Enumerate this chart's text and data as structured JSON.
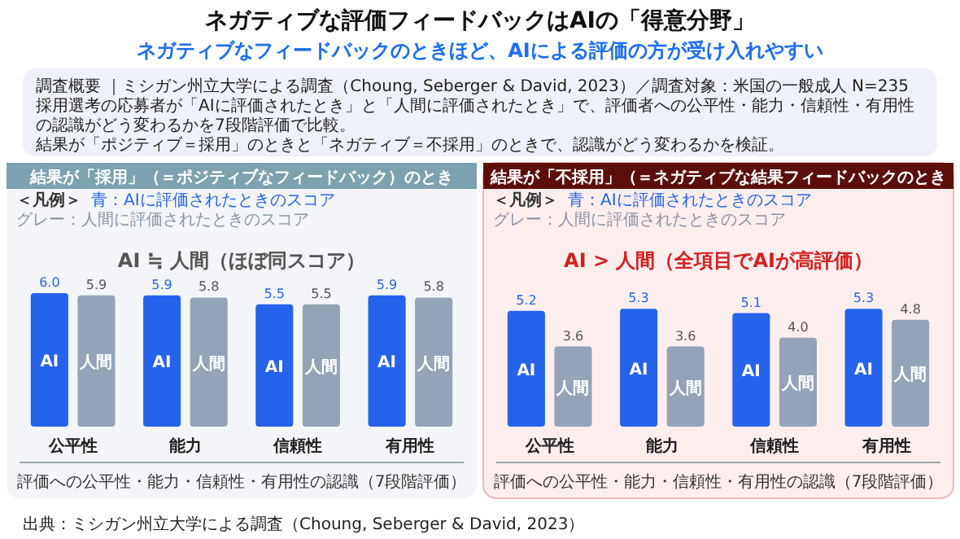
{
  "chart_data": [
    {
      "type": "other",
      "title": "ネガティブな評価フィードバックはAIの「得意分野」",
      "subtitle": "ネガティブなフィードバックのときほど、AIによる評価の方が受け入れやすい",
      "annotations": [
        "調査概要 ｜ミシガン州立大学による調査（Choung, Seberger & David, 2023）／調査対象：米国の一般成人 N=235",
        "採用選考の応募者が「AIに評価されたとき」と「人間に評価されたとき」で、評価者への公平性・能力・信頼性・有用性の認識がどう変わるかを7段階評価で比較。",
        "結果が「ポジティブ＝採用」のときと「ネガティブ＝不採用」のときで、認識がどう変わるかを検証。",
        "出典：ミシガン州立大学による調査（Choung, Seberger & David, 2023）"
      ]
    },
    {
      "type": "bar",
      "title": "結果が「採用」（＝ポジティブなフィードバック）のとき",
      "subtitle": "AI ≒ 人間（ほぼ同スコア）",
      "xlabel": "評価への公平性・能力・信頼性・有用性の認識（7段階評価）",
      "legend_title": "＜凡例＞",
      "annotations": [
        "青：AIに評価されたときのスコア",
        "グレー：人間に評価されたときのスコア"
      ],
      "categories": [
        "公平性",
        "能力",
        "信頼性",
        "有用性"
      ],
      "series": [
        {
          "name": "AI",
          "color": "#2563eb",
          "values": [
            6.0,
            5.9,
            5.5,
            5.9
          ],
          "value_labels": [
            "6.0",
            "5.9",
            "5.5",
            "5.9"
          ]
        },
        {
          "name": "人間",
          "color": "#94a3b8",
          "values": [
            5.9,
            5.8,
            5.5,
            5.8
          ],
          "value_labels": [
            "5.9",
            "5.8",
            "5.5",
            "5.8"
          ]
        }
      ]
    },
    {
      "type": "bar",
      "title": "結果が「不採用」（＝ネガティブな結果フィードバックのとき",
      "subtitle": "AI > 人間（全項目でAIが高評価）",
      "xlabel": "評価への公平性・能力・信頼性・有用性の認識（7段階評価）",
      "legend_title": "＜凡例＞",
      "annotations": [
        "青：AIに評価されたときのスコア",
        "グレー：人間に評価されたときのスコア"
      ],
      "categories": [
        "公平性",
        "能力",
        "信頼性",
        "有用性"
      ],
      "series": [
        {
          "name": "AI",
          "color": "#2563eb",
          "values": [
            5.2,
            5.3,
            5.1,
            5.3
          ],
          "value_labels": [
            "5.2",
            "5.3",
            "5.1",
            "5.3"
          ]
        },
        {
          "name": "人間",
          "color": "#94a3b8",
          "values": [
            3.6,
            3.6,
            4.0,
            4.8
          ],
          "value_labels": [
            "3.6",
            "3.6",
            "4.0",
            "4.8"
          ]
        }
      ]
    }
  ]
}
